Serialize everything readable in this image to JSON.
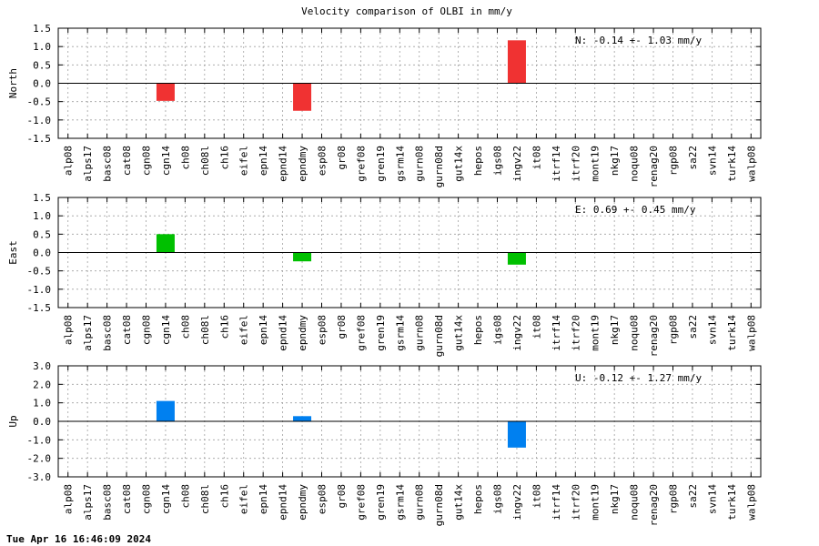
{
  "title": "Velocity comparison of OLBI in mm/y",
  "timestamp": "Tue Apr 16 16:46:09 2024",
  "chart_data": [
    {
      "type": "bar",
      "ylabel": "North",
      "annotation": "N:  -0.14 +-  1.03 mm/y",
      "color": "#f03232",
      "ylim": [
        -1.5,
        1.5
      ],
      "yticks": [
        "-1.5",
        "-1.0",
        "-0.5",
        "0.0",
        "0.5",
        "1.0",
        "1.5"
      ],
      "grid": true,
      "categories": [
        "alp08",
        "alps17",
        "basc08",
        "cat08",
        "cgn08",
        "cgn14",
        "ch08",
        "ch08l",
        "ch16",
        "eifel",
        "epn14",
        "epnd14",
        "epndmy",
        "esp08",
        "gr08",
        "gref08",
        "gren19",
        "gsrm14",
        "gurn08",
        "gurn08d",
        "gut14x",
        "hepos",
        "igs08",
        "ingv22",
        "it08",
        "itrf14",
        "itrf20",
        "mont19",
        "nkg17",
        "noqu08",
        "renag20",
        "rgp08",
        "sa22",
        "svn14",
        "turk14",
        "walp08"
      ],
      "values": [
        0,
        0,
        0,
        0,
        0,
        -0.48,
        0,
        0,
        0,
        0,
        0,
        0,
        -0.75,
        0,
        0,
        0,
        0,
        0,
        0,
        0,
        0,
        0,
        0,
        1.17,
        0,
        0,
        0,
        0,
        0,
        0,
        0,
        0,
        0,
        0,
        0,
        0
      ]
    },
    {
      "type": "bar",
      "ylabel": "East",
      "annotation": "E:   0.69 +-  0.45 mm/y",
      "color": "#00c000",
      "ylim": [
        -1.5,
        1.5
      ],
      "yticks": [
        "-1.5",
        "-1.0",
        "-0.5",
        "0.0",
        "0.5",
        "1.0",
        "1.5"
      ],
      "grid": true,
      "categories": [
        "alp08",
        "alps17",
        "basc08",
        "cat08",
        "cgn08",
        "cgn14",
        "ch08",
        "ch08l",
        "ch16",
        "eifel",
        "epn14",
        "epnd14",
        "epndmy",
        "esp08",
        "gr08",
        "gref08",
        "gren19",
        "gsrm14",
        "gurn08",
        "gurn08d",
        "gut14x",
        "hepos",
        "igs08",
        "ingv22",
        "it08",
        "itrf14",
        "itrf20",
        "mont19",
        "nkg17",
        "noqu08",
        "renag20",
        "rgp08",
        "sa22",
        "svn14",
        "turk14",
        "walp08"
      ],
      "values": [
        0,
        0,
        0,
        0,
        0,
        0.5,
        0,
        0,
        0,
        0,
        0,
        0,
        -0.24,
        0,
        0,
        0,
        0,
        0,
        0,
        0,
        0,
        0,
        0,
        -0.33,
        0,
        0,
        0,
        0,
        0,
        0,
        0,
        0,
        0,
        0,
        0,
        0
      ]
    },
    {
      "type": "bar",
      "ylabel": "Up",
      "annotation": "U:  -0.12 +-  1.27 mm/y",
      "color": "#0080f0",
      "ylim": [
        -3.0,
        3.0
      ],
      "yticks": [
        "-3.0",
        "-2.0",
        "-1.0",
        "0.0",
        "1.0",
        "2.0",
        "3.0"
      ],
      "grid": true,
      "categories": [
        "alp08",
        "alps17",
        "basc08",
        "cat08",
        "cgn08",
        "cgn14",
        "ch08",
        "ch08l",
        "ch16",
        "eifel",
        "epn14",
        "epnd14",
        "epndmy",
        "esp08",
        "gr08",
        "gref08",
        "gren19",
        "gsrm14",
        "gurn08",
        "gurn08d",
        "gut14x",
        "hepos",
        "igs08",
        "ingv22",
        "it08",
        "itrf14",
        "itrf20",
        "mont19",
        "nkg17",
        "noqu08",
        "renag20",
        "rgp08",
        "sa22",
        "svn14",
        "turk14",
        "walp08"
      ],
      "values": [
        0,
        0,
        0,
        0,
        0,
        1.1,
        0,
        0,
        0,
        0,
        0,
        0,
        0.28,
        0,
        0,
        0,
        0,
        0,
        0,
        0,
        0,
        0,
        0,
        -1.42,
        0,
        0,
        0,
        0,
        0,
        0,
        0,
        0,
        0,
        0,
        0,
        0
      ]
    }
  ]
}
